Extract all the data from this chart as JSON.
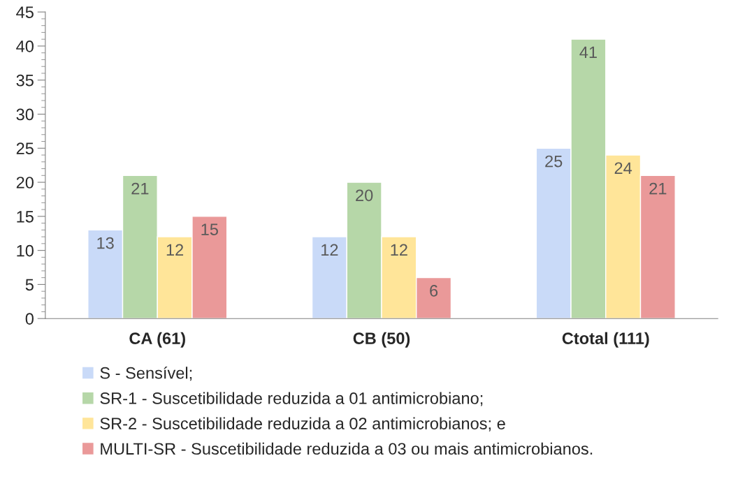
{
  "chart_data": {
    "type": "bar",
    "categories": [
      "CA (61)",
      "CB (50)",
      "Ctotal (111)"
    ],
    "series": [
      {
        "name": "S - Sensível;",
        "color": "#c9daf8",
        "values": [
          13,
          12,
          25
        ]
      },
      {
        "name": "SR-1 - Suscetibilidade reduzida a 01 antimicrobiano;",
        "color": "#b6d7a8",
        "values": [
          21,
          20,
          41
        ]
      },
      {
        "name": "SR-2 - Suscetibilidade reduzida a 02 antimicrobianos; e",
        "color": "#ffe599",
        "values": [
          12,
          12,
          24
        ]
      },
      {
        "name": "MULTI-SR - Suscetibilidade reduzida a 03 ou mais antimicrobianos.",
        "color": "#ea9999",
        "values": [
          15,
          6,
          21
        ]
      }
    ],
    "ylim": [
      0,
      45
    ],
    "yticks": [
      0,
      5,
      10,
      15,
      20,
      25,
      30,
      35,
      40,
      45
    ],
    "data_labels": true,
    "grid": false,
    "legend": "bottom"
  }
}
